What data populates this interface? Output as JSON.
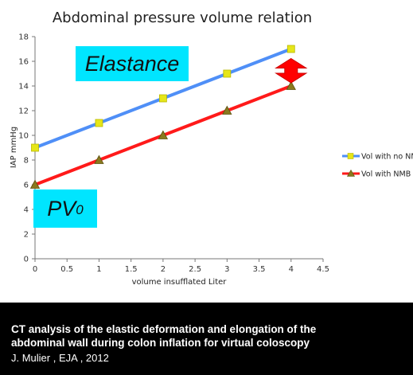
{
  "chart_data": {
    "type": "line",
    "title": "Abdominal pressure volume relation",
    "xlabel": "volume insufflated Liter",
    "ylabel": "IAP  mmHg",
    "xlim": [
      0,
      4.5
    ],
    "ylim": [
      0,
      18
    ],
    "x_ticks": [
      "0",
      "0.5",
      "1",
      "1.5",
      "2",
      "2.5",
      "3",
      "3.5",
      "4",
      "4.5"
    ],
    "y_ticks": [
      "0",
      "2",
      "4",
      "6",
      "8",
      "10",
      "12",
      "14",
      "16",
      "18"
    ],
    "legend_position": "right",
    "grid": false,
    "x": [
      0,
      1,
      2,
      3,
      4
    ],
    "series": [
      {
        "name": "Vol with no NMB",
        "legend_label": "Vol with no NM",
        "values": [
          9,
          11,
          13,
          15,
          17
        ],
        "line_color": "#4f8ff7",
        "marker": "square",
        "marker_color": "#e6e619"
      },
      {
        "name": "Vol with NMB",
        "legend_label": "Vol with NMB",
        "values": [
          6,
          8,
          10,
          12,
          14
        ],
        "line_color": "#ff1a1a",
        "marker": "triangle",
        "marker_color": "#8a7a1e"
      }
    ]
  },
  "annotations": {
    "elastance": "Elastance",
    "pv_main": "PV",
    "pv_sub": "0",
    "callout_color": "#00e5ff",
    "arrow_color": "#ff0000"
  },
  "caption": {
    "title_line1": "CT analysis of the elastic deformation and elongation of the",
    "title_line2": "abdominal wall during colon inflation for virtual coloscopy",
    "citation": "J. Mulier  , EJA , 2012"
  }
}
